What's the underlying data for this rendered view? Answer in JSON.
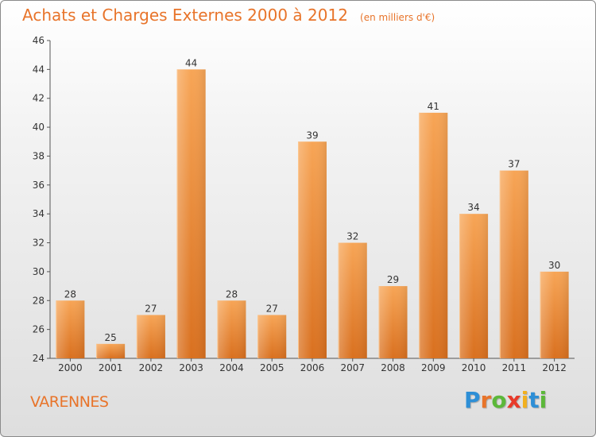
{
  "chart_data": {
    "type": "bar",
    "title": "Achats et Charges Externes 2000 à 2012",
    "subtitle": "(en milliers d'€)",
    "categories": [
      "2000",
      "2001",
      "2002",
      "2003",
      "2004",
      "2005",
      "2006",
      "2007",
      "2008",
      "2009",
      "2010",
      "2011",
      "2012"
    ],
    "values": [
      28,
      25,
      27,
      44,
      28,
      27,
      39,
      32,
      29,
      41,
      34,
      37,
      30
    ],
    "ylim": [
      24,
      46
    ],
    "yticks": [
      24,
      26,
      28,
      30,
      32,
      34,
      36,
      38,
      40,
      42,
      44,
      46
    ],
    "xlabel": "",
    "ylabel": "",
    "grid": false,
    "legend": "none",
    "bar_color": "#f0913a"
  },
  "footer": {
    "commune": "VARENNES",
    "logo_letters": [
      {
        "char": "P",
        "color": "#2e8fd6"
      },
      {
        "char": "r",
        "color": "#e8742a"
      },
      {
        "char": "o",
        "color": "#5cb83a"
      },
      {
        "char": "x",
        "color": "#e83a2a"
      },
      {
        "char": "i",
        "color": "#f2b01e"
      },
      {
        "char": "t",
        "color": "#2e8fd6"
      },
      {
        "char": "i",
        "color": "#5cb83a"
      }
    ]
  }
}
